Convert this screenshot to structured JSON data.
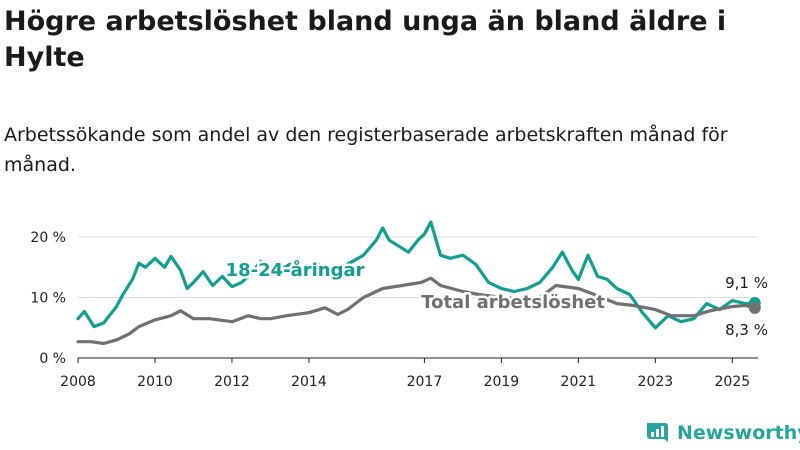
{
  "title": "Högre arbetslöshet bland unga än bland äldre i Hylte",
  "subtitle": "Arbetssökande som andel av den registerbaserade arbetskraften månad för månad.",
  "brand": "Newsworthy",
  "colors": {
    "youth": "#129e91",
    "total": "#707070",
    "grid": "#dcdcdc",
    "brand": "#26a69a"
  },
  "chart_data": {
    "type": "line",
    "title": "Högre arbetslöshet bland unga än bland äldre i Hylte",
    "subtitle": "Arbetssökande som andel av den registerbaserade arbetskraften månad för månad.",
    "xlabel": "",
    "ylabel": "",
    "ylim": [
      0,
      22
    ],
    "xlim": [
      "2008-01",
      "2025-09"
    ],
    "y_ticks": [
      0,
      10,
      20
    ],
    "y_tick_labels": [
      "0 %",
      "10 %",
      "20 %"
    ],
    "x_ticks": [
      "2008",
      "2010",
      "2012",
      "2014",
      "2017",
      "2019",
      "2021",
      "2023",
      "2025"
    ],
    "grid": true,
    "legend": "inline labels",
    "series": [
      {
        "name": "18-24-åringar",
        "end_label": "9,1 %",
        "points": [
          [
            "2008-01",
            6.5
          ],
          [
            "2008-03",
            7.7
          ],
          [
            "2008-06",
            5.2
          ],
          [
            "2008-09",
            5.8
          ],
          [
            "2009-01",
            8.5
          ],
          [
            "2009-03",
            10.5
          ],
          [
            "2009-06",
            13.0
          ],
          [
            "2009-08",
            15.7
          ],
          [
            "2009-10",
            15.0
          ],
          [
            "2010-01",
            16.5
          ],
          [
            "2010-04",
            15.0
          ],
          [
            "2010-06",
            16.8
          ],
          [
            "2010-09",
            14.5
          ],
          [
            "2010-11",
            11.5
          ],
          [
            "2011-01",
            12.5
          ],
          [
            "2011-04",
            14.3
          ],
          [
            "2011-07",
            12.0
          ],
          [
            "2011-10",
            13.5
          ],
          [
            "2012-01",
            11.8
          ],
          [
            "2012-04",
            12.5
          ],
          [
            "2012-07",
            14.0
          ],
          [
            "2012-10",
            16.0
          ],
          [
            "2013-01",
            15.0
          ],
          [
            "2013-04",
            14.5
          ],
          [
            "2013-07",
            15.5
          ],
          [
            "2013-10",
            14.0
          ],
          [
            "2014-01",
            14.5
          ],
          [
            "2014-04",
            15.5
          ],
          [
            "2014-07",
            14.0
          ],
          [
            "2014-10",
            13.5
          ],
          [
            "2015-01",
            15.5
          ],
          [
            "2015-06",
            17.0
          ],
          [
            "2015-10",
            19.5
          ],
          [
            "2015-12",
            21.5
          ],
          [
            "2016-02",
            19.5
          ],
          [
            "2016-05",
            18.5
          ],
          [
            "2016-08",
            17.5
          ],
          [
            "2016-11",
            19.5
          ],
          [
            "2017-01",
            20.5
          ],
          [
            "2017-03",
            22.5
          ],
          [
            "2017-06",
            17.0
          ],
          [
            "2017-09",
            16.5
          ],
          [
            "2018-01",
            17.0
          ],
          [
            "2018-05",
            15.5
          ],
          [
            "2018-09",
            12.5
          ],
          [
            "2019-01",
            11.5
          ],
          [
            "2019-05",
            11.0
          ],
          [
            "2019-09",
            11.5
          ],
          [
            "2020-01",
            12.5
          ],
          [
            "2020-05",
            15.0
          ],
          [
            "2020-08",
            17.5
          ],
          [
            "2020-11",
            14.5
          ],
          [
            "2021-01",
            13.0
          ],
          [
            "2021-04",
            17.0
          ],
          [
            "2021-07",
            13.5
          ],
          [
            "2021-10",
            13.0
          ],
          [
            "2022-01",
            11.5
          ],
          [
            "2022-05",
            10.5
          ],
          [
            "2022-09",
            7.5
          ],
          [
            "2023-01",
            5.0
          ],
          [
            "2023-05",
            7.0
          ],
          [
            "2023-09",
            6.0
          ],
          [
            "2024-01",
            6.5
          ],
          [
            "2024-05",
            9.0
          ],
          [
            "2024-09",
            8.0
          ],
          [
            "2025-01",
            9.5
          ],
          [
            "2025-05",
            9.0
          ],
          [
            "2025-08",
            9.1
          ]
        ]
      },
      {
        "name": "Total arbetslöshet",
        "end_label": "8,3 %",
        "points": [
          [
            "2008-01",
            2.7
          ],
          [
            "2008-05",
            2.7
          ],
          [
            "2008-09",
            2.4
          ],
          [
            "2009-01",
            3.0
          ],
          [
            "2009-05",
            4.0
          ],
          [
            "2009-08",
            5.2
          ],
          [
            "2010-01",
            6.3
          ],
          [
            "2010-06",
            7.0
          ],
          [
            "2010-09",
            7.8
          ],
          [
            "2011-01",
            6.5
          ],
          [
            "2011-06",
            6.5
          ],
          [
            "2012-01",
            6.0
          ],
          [
            "2012-06",
            7.0
          ],
          [
            "2012-10",
            6.5
          ],
          [
            "2013-01",
            6.5
          ],
          [
            "2013-06",
            7.0
          ],
          [
            "2014-01",
            7.5
          ],
          [
            "2014-06",
            8.3
          ],
          [
            "2014-10",
            7.2
          ],
          [
            "2015-01",
            8.0
          ],
          [
            "2015-06",
            10.0
          ],
          [
            "2015-12",
            11.5
          ],
          [
            "2016-06",
            12.0
          ],
          [
            "2016-12",
            12.5
          ],
          [
            "2017-03",
            13.2
          ],
          [
            "2017-06",
            12.0
          ],
          [
            "2018-01",
            11.0
          ],
          [
            "2018-06",
            10.5
          ],
          [
            "2019-01",
            10.0
          ],
          [
            "2019-06",
            9.8
          ],
          [
            "2020-01",
            10.0
          ],
          [
            "2020-06",
            12.0
          ],
          [
            "2021-01",
            11.5
          ],
          [
            "2021-06",
            10.5
          ],
          [
            "2022-01",
            9.0
          ],
          [
            "2022-06",
            8.7
          ],
          [
            "2023-01",
            8.0
          ],
          [
            "2023-06",
            7.0
          ],
          [
            "2024-01",
            7.0
          ],
          [
            "2024-06",
            7.8
          ],
          [
            "2025-01",
            8.5
          ],
          [
            "2025-05",
            8.7
          ],
          [
            "2025-08",
            8.3
          ]
        ]
      }
    ]
  }
}
